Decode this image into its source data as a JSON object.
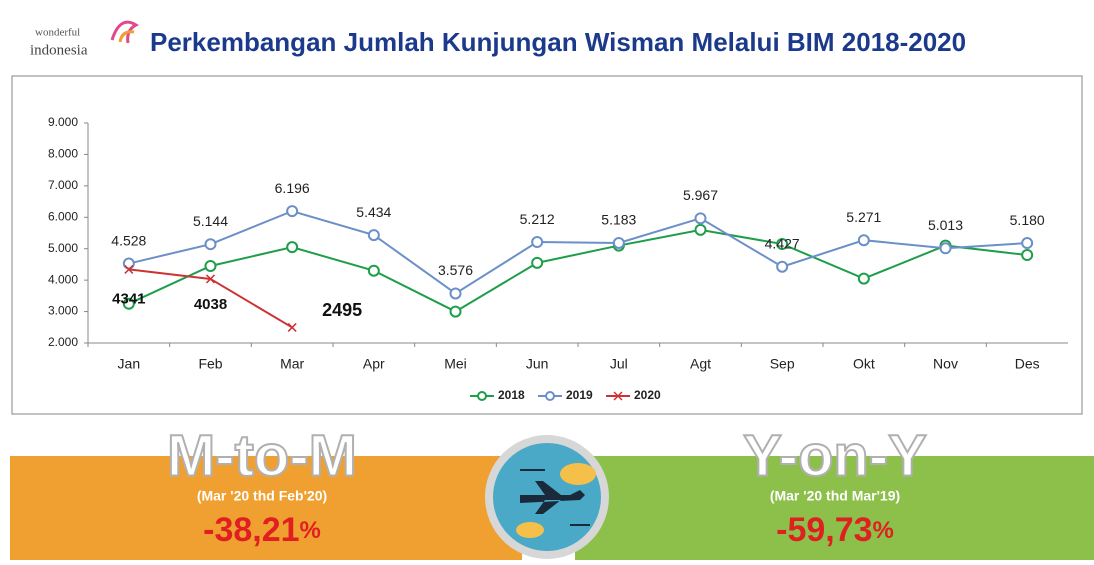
{
  "logo": {
    "top": "wonderful",
    "bottom": "indonesia"
  },
  "chart_data": {
    "type": "line",
    "title": "Perkembangan Jumlah Kunjungan Wisman Melalui BIM 2018-2020",
    "categories": [
      "Jan",
      "Feb",
      "Mar",
      "Apr",
      "Mei",
      "Jun",
      "Jul",
      "Agt",
      "Sep",
      "Okt",
      "Nov",
      "Des"
    ],
    "series": [
      {
        "name": "2018",
        "color": "#1e9e4a",
        "marker": "circle",
        "values": [
          3250,
          4450,
          5050,
          4300,
          3000,
          4550,
          5100,
          5600,
          5150,
          4050,
          5100,
          4800
        ]
      },
      {
        "name": "2019",
        "color": "#6b8fc8",
        "marker": "circle",
        "values": [
          4528,
          5144,
          6196,
          5434,
          3576,
          5212,
          5183,
          5967,
          4427,
          5271,
          5013,
          5180
        ],
        "value_labels": [
          "4.528",
          "5.144",
          "6.196",
          "5.434",
          "3.576",
          "5.212",
          "5.183",
          "5.967",
          "4.427",
          "5.271",
          "5.013",
          "5.180"
        ]
      },
      {
        "name": "2020",
        "color": "#cc3333",
        "marker": "x",
        "values": [
          4341,
          4038,
          2495,
          null,
          null,
          null,
          null,
          null,
          null,
          null,
          null,
          null
        ],
        "show_labels": true
      }
    ],
    "ylim": [
      2000,
      9000
    ],
    "yticks": [
      {
        "value": 2000,
        "label": "2.000"
      },
      {
        "value": 3000,
        "label": "3.000"
      },
      {
        "value": 4000,
        "label": "4.000"
      },
      {
        "value": 5000,
        "label": "5.000"
      },
      {
        "value": 6000,
        "label": "6.000"
      },
      {
        "value": 7000,
        "label": "7.000"
      },
      {
        "value": 8000,
        "label": "8.000"
      },
      {
        "value": 9000,
        "label": "9.000"
      }
    ],
    "legend": "bottom"
  },
  "panels": [
    {
      "heading": "M-to-M",
      "period": "(Mar '20 thd Feb'20)",
      "value": "-38,21",
      "unit": "%"
    },
    {
      "heading": "Y-on-Y",
      "period": "(Mar '20 thd  Mar'19)",
      "value": "-59,73",
      "unit": "%"
    }
  ]
}
